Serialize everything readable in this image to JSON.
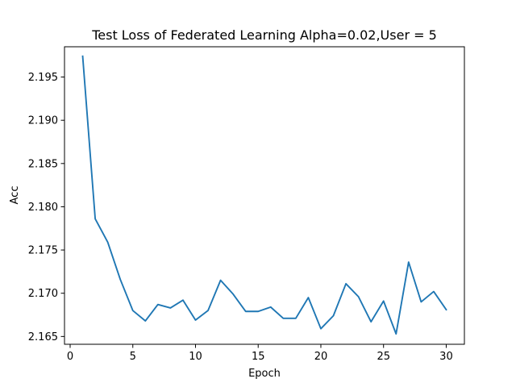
{
  "chart_data": {
    "type": "line",
    "title": "Test Loss of Federated Learning Alpha=0.02,User = 5",
    "xlabel": "Epoch",
    "ylabel": "Acc",
    "xlim": [
      -0.45,
      31.45
    ],
    "ylim": [
      2.1641,
      2.1985
    ],
    "xticks": [
      0,
      5,
      10,
      15,
      20,
      25,
      30
    ],
    "yticks": [
      2.165,
      2.17,
      2.175,
      2.18,
      2.185,
      2.19,
      2.195
    ],
    "ytick_labels": [
      "2.165",
      "2.170",
      "2.175",
      "2.180",
      "2.185",
      "2.190",
      "2.195"
    ],
    "grid": false,
    "series": [
      {
        "color": "#1f77b4",
        "x": [
          1,
          2,
          3,
          4,
          5,
          6,
          7,
          8,
          9,
          10,
          11,
          12,
          13,
          14,
          15,
          16,
          17,
          18,
          19,
          20,
          21,
          22,
          23,
          24,
          25,
          26,
          27,
          28,
          29,
          30
        ],
        "values": [
          2.1974,
          2.1786,
          2.1759,
          2.1716,
          2.168,
          2.1668,
          2.1687,
          2.1683,
          2.1692,
          2.1669,
          2.168,
          2.1715,
          2.1699,
          2.1679,
          2.1679,
          2.1684,
          2.1671,
          2.1671,
          2.1695,
          2.1659,
          2.1674,
          2.1711,
          2.1696,
          2.1667,
          2.1691,
          2.1653,
          2.1736,
          2.169,
          2.1702,
          2.1681
        ]
      }
    ]
  }
}
